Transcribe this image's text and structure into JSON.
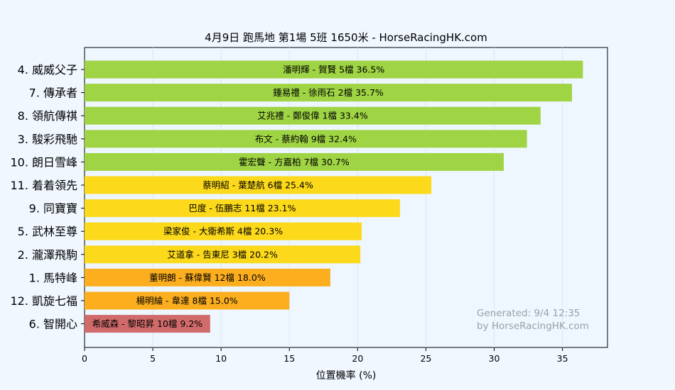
{
  "chart_data": {
    "type": "bar",
    "orientation": "horizontal",
    "title": "4月9日  跑馬地  第1場  5班  1650米 - HorseRacingHK.com",
    "xlabel": "位置機率 (%)",
    "ylabel": "",
    "xlim": [
      0,
      38.3
    ],
    "xticks": [
      0,
      5,
      10,
      15,
      20,
      25,
      30,
      35
    ],
    "grid": "vertical",
    "categories": [
      "4. 威威父子",
      "7. 傳承者",
      "8. 領航傳祺",
      "3. 駿彩飛馳",
      "10. 朗日雪峰",
      "11. 着着領先",
      "9. 同寶寶",
      "5. 武林至尊",
      "2. 瀧澤飛駒",
      "1. 馬特峰",
      "12. 凱旋七福",
      "6. 智開心"
    ],
    "values": [
      36.5,
      35.7,
      33.4,
      32.4,
      30.7,
      25.4,
      23.1,
      20.3,
      20.2,
      18.0,
      15.0,
      9.2
    ],
    "bar_labels": [
      "潘明輝 - 賀賢 5檔  36.5%",
      "鍾易禮 - 徐雨石 2檔  35.7%",
      "艾兆禮 - 鄭俊偉 1檔  33.4%",
      "布文 - 蔡約翰 9檔  32.4%",
      "霍宏聲 - 方嘉柏 7檔  30.7%",
      "蔡明紹 - 葉楚航 6檔  25.4%",
      "巴度 - 伍鵬志 11檔  23.1%",
      "梁家俊 - 大衛希斯 4檔  20.3%",
      "艾道拿 - 告東尼 3檔  20.2%",
      "董明朗 - 蘇偉賢 12檔  18.0%",
      "楊明綸 - 韋達 8檔  15.0%",
      "希威森 - 黎昭昇 10檔  9.2%"
    ],
    "colors": [
      "#9fd444",
      "#9fd444",
      "#9fd444",
      "#9fd444",
      "#9fd444",
      "#fcd91a",
      "#fcd91a",
      "#fcd91a",
      "#fcd91a",
      "#fcae1f",
      "#fcae1f",
      "#d16b6b"
    ]
  },
  "watermark": {
    "line1": "Generated: 9/4 12:35",
    "line2": "by HorseRacingHK.com"
  }
}
